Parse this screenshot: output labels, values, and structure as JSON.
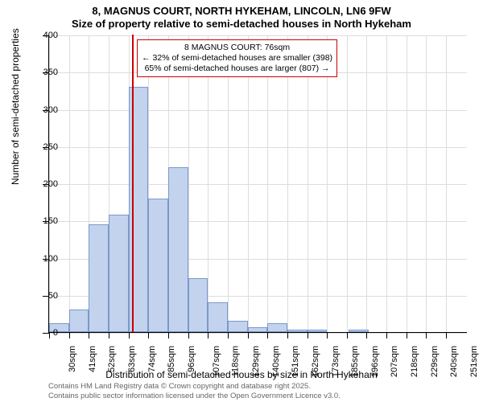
{
  "title": {
    "line1": "8, MAGNUS COURT, NORTH HYKEHAM, LINCOLN, LN6 9FW",
    "line2": "Size of property relative to semi-detached houses in North Hykeham"
  },
  "chart": {
    "type": "histogram",
    "y_axis_title": "Number of semi-detached properties",
    "x_axis_title": "Distribution of semi-detached houses by size in North Hykeham",
    "ylim": [
      0,
      400
    ],
    "ytick_step": 50,
    "background_color": "#ffffff",
    "grid_color": "#dddddd",
    "bar_fill": "#c3d3ee",
    "bar_border": "#7b98c9",
    "marker_color": "#cc0000",
    "marker_position_sqm": 76,
    "x_range_sqm": [
      30,
      262
    ],
    "x_ticks": [
      "30sqm",
      "41sqm",
      "52sqm",
      "63sqm",
      "74sqm",
      "85sqm",
      "96sqm",
      "107sqm",
      "118sqm",
      "129sqm",
      "140sqm",
      "151sqm",
      "162sqm",
      "173sqm",
      "185sqm",
      "196sqm",
      "207sqm",
      "218sqm",
      "229sqm",
      "240sqm",
      "251sqm"
    ],
    "x_tick_step_sqm": 11,
    "bars": [
      {
        "x_sqm": 30,
        "value": 12
      },
      {
        "x_sqm": 41,
        "value": 30
      },
      {
        "x_sqm": 52,
        "value": 145
      },
      {
        "x_sqm": 63,
        "value": 158
      },
      {
        "x_sqm": 74,
        "value": 330
      },
      {
        "x_sqm": 85,
        "value": 180
      },
      {
        "x_sqm": 96,
        "value": 222
      },
      {
        "x_sqm": 107,
        "value": 72
      },
      {
        "x_sqm": 118,
        "value": 40
      },
      {
        "x_sqm": 129,
        "value": 15
      },
      {
        "x_sqm": 140,
        "value": 6
      },
      {
        "x_sqm": 151,
        "value": 12
      },
      {
        "x_sqm": 162,
        "value": 3
      },
      {
        "x_sqm": 173,
        "value": 3
      },
      {
        "x_sqm": 185,
        "value": 0
      },
      {
        "x_sqm": 196,
        "value": 3
      },
      {
        "x_sqm": 207,
        "value": 0
      },
      {
        "x_sqm": 218,
        "value": 0
      },
      {
        "x_sqm": 229,
        "value": 0
      },
      {
        "x_sqm": 240,
        "value": 0
      },
      {
        "x_sqm": 251,
        "value": 0
      }
    ],
    "annotation": {
      "line1": "8 MAGNUS COURT: 76sqm",
      "line2": "← 32% of semi-detached houses are smaller (398)",
      "line3": "65% of semi-detached houses are larger (807) →",
      "border_color": "#cc0000",
      "background_color": "#ffffff",
      "fontsize": 10.5
    }
  },
  "footer": {
    "line1": "Contains HM Land Registry data © Crown copyright and database right 2025.",
    "line2": "Contains public sector information licensed under the Open Government Licence v3.0.",
    "color": "#666666"
  }
}
